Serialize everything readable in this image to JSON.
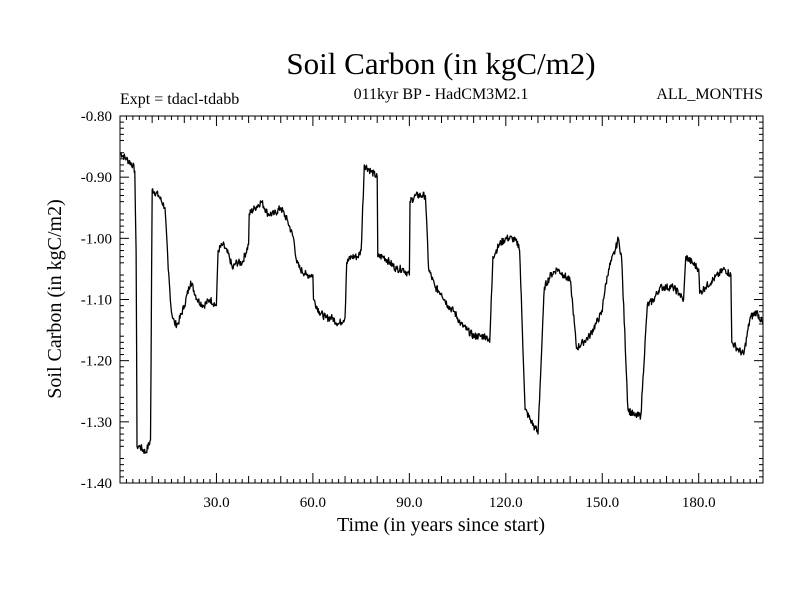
{
  "chart_data": {
    "type": "line",
    "title": "Soil Carbon (in kgC/m2)",
    "subtitle": "011kyr BP - HadCM3M2.1",
    "left_note": "Expt = tdacl-tdabb",
    "right_note": "ALL_MONTHS",
    "xlabel": "Time (in years since start)",
    "ylabel": "Soil Carbon (in kgC/m2)",
    "xlim": [
      0,
      200
    ],
    "ylim": [
      -1.4,
      -0.8
    ],
    "x_ticks": [
      {
        "value": 30,
        "label": "30.0"
      },
      {
        "value": 60,
        "label": "60.0"
      },
      {
        "value": 90,
        "label": "90.0"
      },
      {
        "value": 120,
        "label": "120.0"
      },
      {
        "value": 150,
        "label": "150.0"
      },
      {
        "value": 180,
        "label": "180.0"
      }
    ],
    "y_ticks": [
      {
        "value": -0.8,
        "label": "-0.80"
      },
      {
        "value": -0.9,
        "label": "-0.90"
      },
      {
        "value": -1.0,
        "label": "-1.00"
      },
      {
        "value": -1.1,
        "label": "-1.10"
      },
      {
        "value": -1.2,
        "label": "-1.20"
      },
      {
        "value": -1.3,
        "label": "-1.30"
      },
      {
        "value": -1.4,
        "label": "-1.40"
      }
    ],
    "grid": false,
    "line_color": "#000000",
    "series": [
      {
        "x": [
          0,
          2,
          4,
          4.6,
          5,
          5.3,
          6,
          8,
          9.5,
          10,
          12,
          14,
          15,
          16,
          17,
          18,
          20,
          22,
          24,
          26,
          28,
          30,
          30.5,
          32,
          34,
          35,
          36,
          38,
          40,
          40.2,
          42,
          44,
          46,
          48,
          50,
          52,
          54,
          55,
          56,
          58,
          60,
          60.2,
          62,
          64,
          66,
          68,
          70,
          70.5,
          72,
          74,
          75,
          76,
          78,
          80,
          80.2,
          82,
          84,
          86,
          88,
          90,
          90.2,
          92,
          94,
          95,
          96,
          98,
          100,
          102,
          104,
          106,
          108,
          110,
          112,
          114,
          115,
          116,
          118,
          120,
          122,
          124,
          124.3,
          126,
          128,
          129,
          129.3,
          130,
          132,
          134,
          136,
          138,
          140,
          140.3,
          142,
          144,
          146,
          148,
          150,
          150.3,
          152,
          154,
          155,
          155.3,
          156,
          158,
          160,
          160.3,
          162,
          164,
          166,
          168,
          170,
          172,
          174,
          175,
          175.3,
          176,
          178,
          180,
          180.3,
          182,
          184,
          186,
          188,
          190,
          190.3,
          192,
          194,
          196,
          198,
          200
        ],
        "y": [
          -0.86,
          -0.87,
          -0.88,
          -0.89,
          -1.02,
          -1.34,
          -1.34,
          -1.35,
          -1.33,
          -0.92,
          -0.93,
          -0.95,
          -1.05,
          -1.12,
          -1.14,
          -1.14,
          -1.11,
          -1.07,
          -1.1,
          -1.11,
          -1.1,
          -1.11,
          -1.02,
          -1.01,
          -1.03,
          -1.05,
          -1.04,
          -1.04,
          -1.01,
          -0.96,
          -0.95,
          -0.94,
          -0.96,
          -0.96,
          -0.95,
          -0.97,
          -1.0,
          -1.04,
          -1.05,
          -1.06,
          -1.06,
          -1.1,
          -1.12,
          -1.13,
          -1.13,
          -1.14,
          -1.13,
          -1.04,
          -1.03,
          -1.03,
          -1.02,
          -0.88,
          -0.89,
          -0.9,
          -1.03,
          -1.03,
          -1.04,
          -1.05,
          -1.05,
          -1.06,
          -0.94,
          -0.93,
          -0.93,
          -0.93,
          -1.05,
          -1.08,
          -1.09,
          -1.11,
          -1.12,
          -1.14,
          -1.15,
          -1.16,
          -1.16,
          -1.16,
          -1.17,
          -1.03,
          -1.01,
          -1.0,
          -1.0,
          -1.01,
          -1.02,
          -1.28,
          -1.3,
          -1.31,
          -1.31,
          -1.32,
          -1.08,
          -1.06,
          -1.05,
          -1.06,
          -1.07,
          -1.08,
          -1.18,
          -1.17,
          -1.16,
          -1.14,
          -1.12,
          -1.1,
          -1.05,
          -1.02,
          -1.0,
          -1.01,
          -1.03,
          -1.28,
          -1.29,
          -1.29,
          -1.29,
          -1.11,
          -1.1,
          -1.08,
          -1.08,
          -1.08,
          -1.09,
          -1.1,
          -1.1,
          -1.03,
          -1.04,
          -1.05,
          -1.09,
          -1.08,
          -1.07,
          -1.06,
          -1.05,
          -1.06,
          -1.17,
          -1.18,
          -1.19,
          -1.13,
          -1.12,
          -1.14
        ]
      }
    ]
  }
}
